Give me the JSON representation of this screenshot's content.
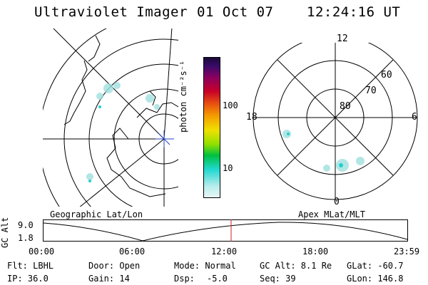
{
  "header": {
    "instrument": "Ultraviolet Imager",
    "date": "01 Oct 07",
    "time": "12:24:16 UT"
  },
  "geo_panel": {
    "label": "Geographic Lat/Lon"
  },
  "apex_panel": {
    "label": "Apex MLat/MLT",
    "lat_labels": [
      "80",
      "70",
      "60"
    ],
    "mlt_labels": {
      "top": "12",
      "right": "6",
      "bottom": "0",
      "left": "18"
    }
  },
  "colorbar": {
    "unit": "photon cm⁻²s⁻¹",
    "ticks": [
      "100",
      "10"
    ],
    "colors": [
      "#1a0a3a",
      "#3a0a6a",
      "#8a0060",
      "#c80028",
      "#e85010",
      "#f5a000",
      "#f0e000",
      "#90e000",
      "#00c040",
      "#20d8d0",
      "#b8ecec"
    ]
  },
  "altitude_plot": {
    "ylabel": "GC Alt",
    "yticks": [
      "9.0",
      "1.8"
    ],
    "xticks": [
      "00:00",
      "06:00",
      "12:00",
      "18:00",
      "23:59"
    ],
    "current_marker_color": "#d02020"
  },
  "info": {
    "filter": "Flt: LBHL",
    "door": "Door: Open",
    "mode": "Mode: Normal",
    "gc_alt": "GC Alt: 8.1 Re",
    "glat": "GLat: -60.7",
    "ip": "IP: 36.0",
    "gain": "Gain: 14",
    "dsp_label": "Dsp:",
    "dsp_value": "-5.0",
    "seq": "Seq: 39",
    "glon": "GLon: 146.8"
  }
}
